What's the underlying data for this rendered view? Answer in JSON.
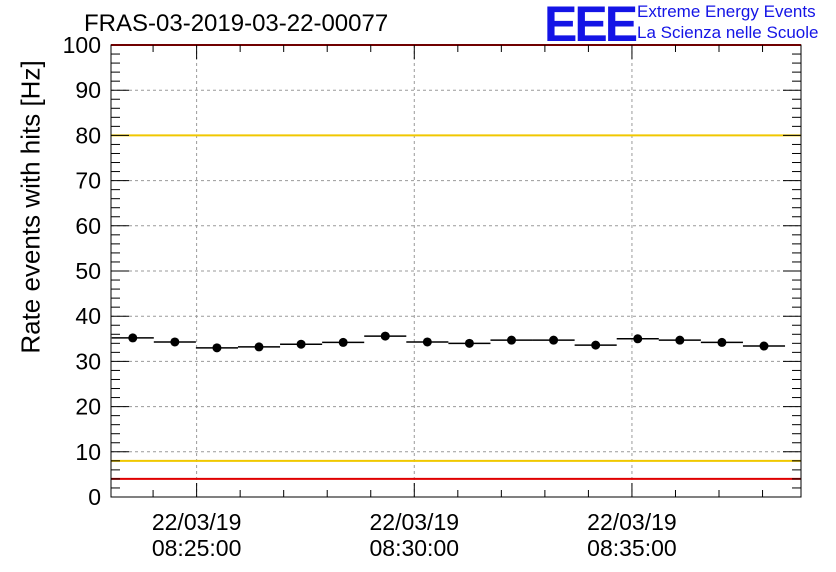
{
  "header": {
    "title": "FRAS-03-2019-03-22-00077",
    "logo_mark": "EEE",
    "logo_line1": "Extreme Energy Events",
    "logo_line2": "La Scienza nelle Scuole"
  },
  "chart_data": {
    "type": "scatter",
    "title": "FRAS-03-2019-03-22-00077",
    "ylabel": "Rate events with hits [Hz]",
    "xlabel": "",
    "ylim": [
      0,
      100
    ],
    "yticks": [
      0,
      10,
      20,
      30,
      40,
      50,
      60,
      70,
      80,
      90,
      100
    ],
    "xlim": [
      "08:23:02",
      "08:38:53"
    ],
    "xticks": [
      {
        "time": "08:25:00",
        "date": "22/03/19",
        "time_label": "08:25:00"
      },
      {
        "time": "08:30:00",
        "date": "22/03/19",
        "time_label": "08:30:00"
      },
      {
        "time": "08:35:00",
        "date": "22/03/19",
        "time_label": "08:35:00"
      }
    ],
    "grid": true,
    "point_color": "#000000",
    "reference_lines": [
      {
        "y": 80,
        "color": "#f0c800"
      },
      {
        "y": 8,
        "color": "#f0c800"
      },
      {
        "y": 100,
        "color": "#e00000"
      },
      {
        "y": 4,
        "color": "#e00000"
      }
    ],
    "series": [
      {
        "x": [
          "08:23:32",
          "08:24:30",
          "08:25:28",
          "08:26:26",
          "08:27:24",
          "08:28:22",
          "08:29:20",
          "08:30:18",
          "08:31:16",
          "08:32:14",
          "08:33:12",
          "08:34:10",
          "08:35:08",
          "08:36:06",
          "08:37:04",
          "08:38:02"
        ],
        "bin_width_s": 58,
        "values": [
          35.2,
          34.3,
          33.0,
          33.2,
          33.8,
          34.2,
          35.6,
          34.3,
          34.0,
          34.7,
          34.7,
          33.6,
          35.0,
          34.7,
          34.2,
          33.4
        ]
      }
    ]
  }
}
